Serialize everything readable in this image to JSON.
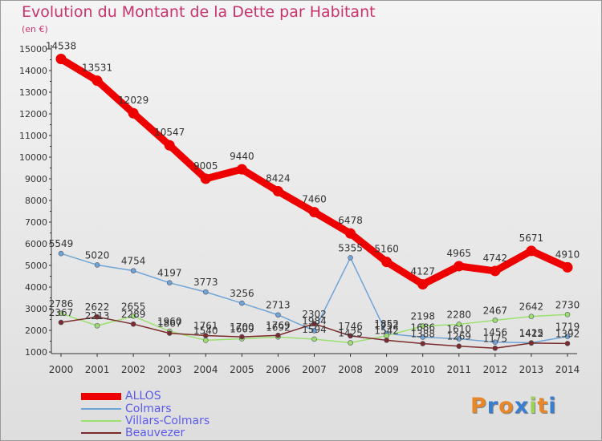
{
  "title": "Evolution du Montant de la Dette par Habitant",
  "unit": "(en €)",
  "logo": "Proxiti",
  "chart_data": {
    "type": "line",
    "x": [
      "2000",
      "2001",
      "2002",
      "2003",
      "2004",
      "2005",
      "2006",
      "2007",
      "2008",
      "2009",
      "2010",
      "2011",
      "2012",
      "2013",
      "2014"
    ],
    "ylim": [
      1000,
      15000
    ],
    "yticks": [
      1000,
      2000,
      3000,
      4000,
      5000,
      6000,
      7000,
      8000,
      9000,
      10000,
      11000,
      12000,
      13000,
      14000,
      15000
    ],
    "grid": false,
    "legend_position": "bottom-left",
    "series": [
      {
        "name": "ALLOS",
        "color": "#ee0000",
        "width": 9,
        "values": [
          14538,
          13531,
          12029,
          10547,
          9005,
          9440,
          8424,
          7460,
          6478,
          5160,
          4127,
          4965,
          4742,
          5671,
          4910
        ]
      },
      {
        "name": "Colmars",
        "color": "#6fa5d6",
        "width": 1.5,
        "values": [
          5549,
          5020,
          4754,
          4197,
          3773,
          3256,
          2713,
          1984,
          5355,
          1852,
          1686,
          1610,
          1456,
          1425,
          1719
        ]
      },
      {
        "name": "Villars-Colmars",
        "color": "#9be06e",
        "width": 1.5,
        "values": [
          2786,
          2213,
          2655,
          1960,
          1540,
          1609,
          1692,
          1594,
          1425,
          1752,
          2198,
          2280,
          2467,
          2642,
          2730
        ]
      },
      {
        "name": "Beauvezer",
        "color": "#7b2b2b",
        "width": 1.5,
        "values": [
          2367,
          2622,
          2289,
          1867,
          1761,
          1700,
          1769,
          2302,
          1746,
          1542,
          1388,
          1269,
          1175,
          1412,
          1392
        ]
      }
    ]
  }
}
